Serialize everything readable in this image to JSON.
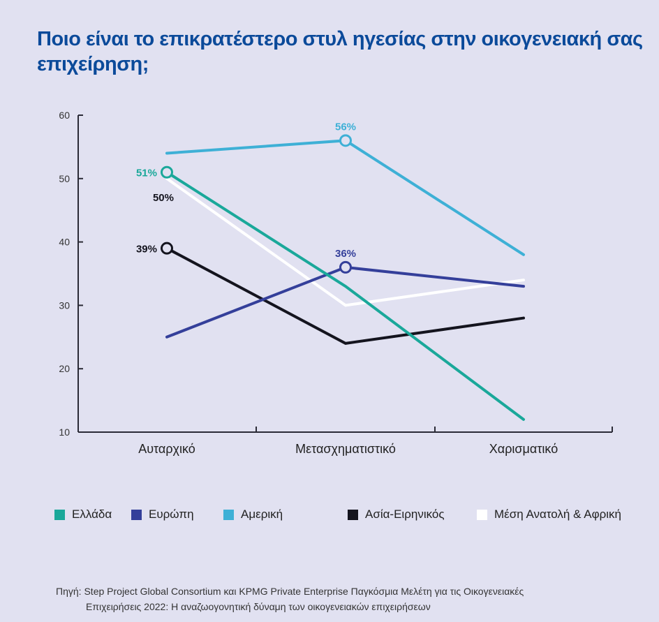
{
  "title": "Ποιο είναι το επικρατέστερο στυλ ηγεσίας στην οικογενειακή σας επιχείρηση;",
  "chart_data": {
    "type": "line",
    "title": "Ποιο είναι το επικρατέστερο στυλ ηγεσίας στην οικογενειακή σας επιχείρηση;",
    "xlabel": "",
    "ylabel": "",
    "categories": [
      "Αυταρχικό",
      "Μετασχηματιστικό",
      "Χαρισματικό"
    ],
    "ylim": [
      10,
      60
    ],
    "yticks": [
      10,
      20,
      30,
      40,
      50,
      60
    ],
    "grid": false,
    "legend_position": "bottom",
    "series": [
      {
        "name": "Ελλάδα",
        "color": "#1aa89a",
        "values": [
          51,
          33,
          12
        ],
        "labels": [
          {
            "index": 0,
            "text": "51%"
          }
        ]
      },
      {
        "name": "Ευρώπη",
        "color": "#343f9a",
        "values": [
          25,
          36,
          33
        ],
        "labels": [
          {
            "index": 1,
            "text": "36%"
          }
        ]
      },
      {
        "name": "Αμερική",
        "color": "#3eb0d6",
        "values": [
          54,
          56,
          38
        ],
        "labels": [
          {
            "index": 1,
            "text": "56%"
          }
        ]
      },
      {
        "name": "Ασία-Ειρηνικός",
        "color": "#14141e",
        "values": [
          39,
          24,
          28
        ],
        "labels": [
          {
            "index": 0,
            "text": "39%"
          }
        ]
      },
      {
        "name": "Μέση Ανατολή & Αφρική",
        "color": "#ffffff",
        "values": [
          50,
          30,
          34
        ],
        "labels": [
          {
            "index": 0,
            "text": "50%",
            "label_color": "#14141e"
          }
        ]
      }
    ]
  },
  "source": {
    "line1": "Πηγή: Step Project Global Consortium και KPMG Private Enterprise Παγκόσμια Μελέτη για τις Οικογενειακές",
    "line2": "Επιχειρήσεις 2022: Η αναζωογονητική δύναμη των οικογενειακών επιχειρήσεων"
  }
}
